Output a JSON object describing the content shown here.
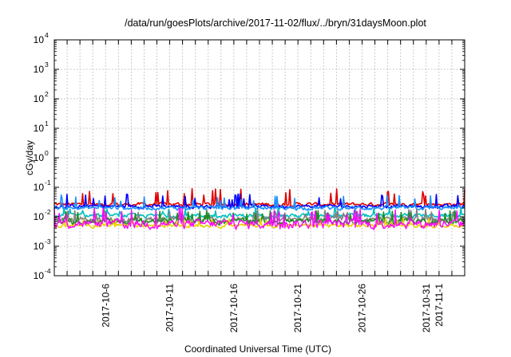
{
  "chart_data": {
    "type": "line",
    "title": "/data/run/goesPlots/archive/2017-11-02/flux/../bryn/31daysMoon.plot",
    "xlabel": "Coordinated Universal Time (UTC)",
    "ylabel": "cGy/day",
    "yscale": "log",
    "ylim": [
      0.0001,
      10000
    ],
    "xlim": [
      "2017-10-02 00:00",
      "2017-11-03 00:00"
    ],
    "y_ticks": [
      {
        "base": "10",
        "exp": "4",
        "value": 10000
      },
      {
        "base": "10",
        "exp": "3",
        "value": 1000
      },
      {
        "base": "10",
        "exp": "2",
        "value": 100
      },
      {
        "base": "10",
        "exp": "1",
        "value": 10
      },
      {
        "base": "10",
        "exp": "0",
        "value": 1
      },
      {
        "base": "10",
        "exp": "-1",
        "value": 0.1
      },
      {
        "base": "10",
        "exp": "-2",
        "value": 0.01
      },
      {
        "base": "10",
        "exp": "-3",
        "value": 0.001
      },
      {
        "base": "10",
        "exp": "-4",
        "value": 0.0001
      }
    ],
    "x_tick_labels": [
      {
        "label": "2017-10-6",
        "date": "2017-10-06"
      },
      {
        "label": "2017-10-11",
        "date": "2017-10-11"
      },
      {
        "label": "2017-10-16",
        "date": "2017-10-16"
      },
      {
        "label": "2017-10-21",
        "date": "2017-10-21"
      },
      {
        "label": "2017-10-26",
        "date": "2017-10-26"
      },
      {
        "label": "2017-10-31",
        "date": "2017-10-31"
      },
      {
        "label": "2017-11-1",
        "date": "2017-11-01"
      }
    ],
    "grid": true,
    "legend": "none",
    "series": [
      {
        "color": "#e00000",
        "baseline": 0.024,
        "noise_low": 0.85,
        "noise_high": 1.35,
        "spike_max": 0.09
      },
      {
        "color": "#0000ff",
        "baseline": 0.021,
        "noise_low": 0.85,
        "noise_high": 1.3,
        "spike_max": 0.06
      },
      {
        "color": "#1e90ff",
        "baseline": 0.019,
        "noise_low": 0.8,
        "noise_high": 1.3,
        "spike_max": 0.055
      },
      {
        "color": "#00bfbf",
        "baseline": 0.011,
        "noise_low": 0.75,
        "noise_high": 1.25,
        "spike_max": 0.02
      },
      {
        "color": "#808080",
        "baseline": 0.0085,
        "noise_low": 0.6,
        "noise_high": 1.3,
        "spike_max": 0.018
      },
      {
        "color": "#228b22",
        "baseline": 0.0075,
        "noise_low": 0.6,
        "noise_high": 1.3,
        "spike_max": 0.016
      },
      {
        "color": "#e6d200",
        "baseline": 0.0052,
        "noise_low": 0.75,
        "noise_high": 1.2,
        "spike_max": 0.009
      },
      {
        "color": "#ff00ff",
        "baseline": 0.0048,
        "noise_low": 0.55,
        "noise_high": 1.9,
        "spike_max": 0.02
      }
    ]
  }
}
